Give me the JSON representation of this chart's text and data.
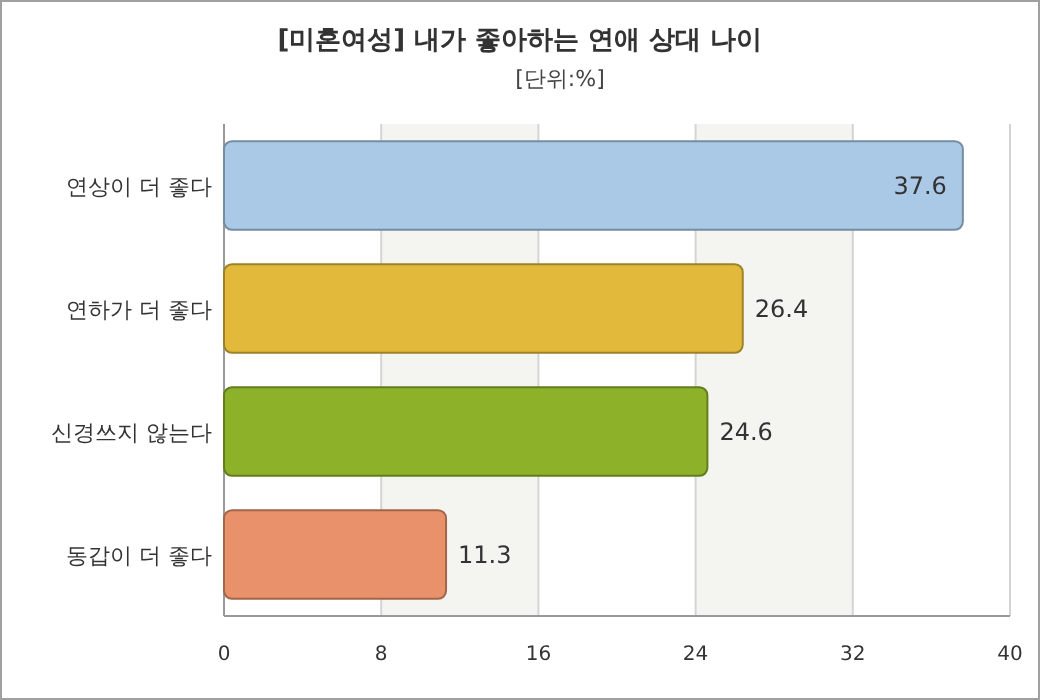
{
  "chart_data": {
    "type": "bar",
    "orientation": "horizontal",
    "title": "[미혼여성] 내가 좋아하는 연애 상대 나이",
    "subtitle": "[단위:%]",
    "categories": [
      "연상이 더 좋다",
      "연하가 더 좋다",
      "신경쓰지 않는다",
      "동갑이 더 좋다"
    ],
    "values": [
      37.6,
      26.4,
      24.6,
      11.3
    ],
    "colors": [
      "#a9c9e6",
      "#e2b93a",
      "#8db22a",
      "#e9916a"
    ],
    "xlim": [
      0,
      40
    ],
    "xticks": [
      0,
      8,
      16,
      24,
      32,
      40
    ],
    "grid": "x",
    "data_labels": true
  }
}
